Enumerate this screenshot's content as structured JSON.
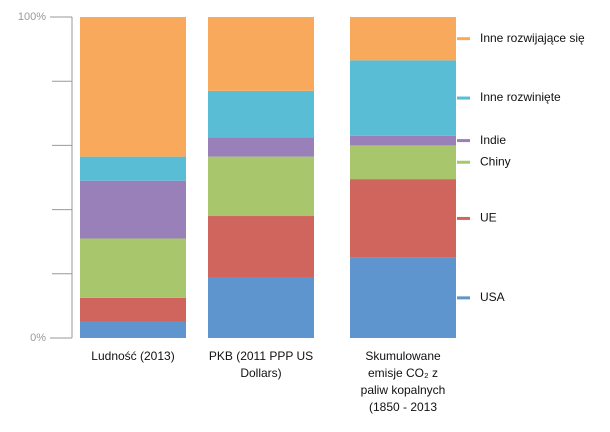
{
  "chart_data": {
    "type": "stacked_bar",
    "categories": [
      "Ludność (2013)",
      "PKB (2011 PPP US Dollars)",
      "Skumulowane emisje CO₂ z paliw kopalnych (1850 - 2013"
    ],
    "series": [
      {
        "name": "USA",
        "color": "#5f95cf",
        "values": [
          5,
          19,
          25
        ]
      },
      {
        "name": "UE",
        "color": "#d0655e",
        "values": [
          7.5,
          19,
          24.5
        ]
      },
      {
        "name": "Chiny",
        "color": "#a8c76d",
        "values": [
          18.5,
          18.5,
          10.5
        ]
      },
      {
        "name": "Indie",
        "color": "#9a80b9",
        "values": [
          18,
          6,
          3
        ]
      },
      {
        "name": "Inne rozwinięte",
        "color": "#58bdd5",
        "values": [
          7.5,
          14.5,
          23.5
        ]
      },
      {
        "name": "Inne rozwijające się",
        "color": "#f8a95b",
        "values": [
          43.5,
          23,
          13.5
        ]
      }
    ],
    "ylim": [
      0,
      100
    ],
    "yticks": [
      {
        "value": 0,
        "label": "0%"
      },
      {
        "value": 100,
        "label": "100%"
      }
    ],
    "yminor_ticks": [
      20,
      40,
      60,
      80
    ],
    "stacked": true
  }
}
